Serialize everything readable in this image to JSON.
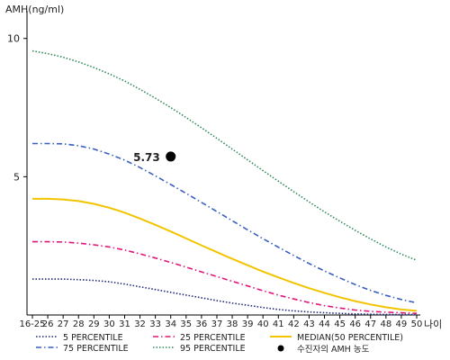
{
  "chart_data": {
    "type": "line",
    "title": "",
    "ylabel": "AMH(ng/ml)",
    "xlabel": "나이",
    "ylim": [
      0,
      11
    ],
    "y_ticks": [
      5,
      10
    ],
    "categories": [
      "16-25",
      "26",
      "27",
      "28",
      "29",
      "30",
      "31",
      "32",
      "33",
      "34",
      "35",
      "36",
      "37",
      "38",
      "39",
      "40",
      "41",
      "42",
      "43",
      "44",
      "45",
      "46",
      "47",
      "48",
      "49",
      "50"
    ],
    "series": [
      {
        "name": "5 PERCENTILE",
        "color": "#1f2a7a",
        "style": "dotted",
        "values": [
          1.3,
          1.3,
          1.3,
          1.28,
          1.25,
          1.2,
          1.12,
          1.02,
          0.92,
          0.82,
          0.72,
          0.62,
          0.52,
          0.43,
          0.35,
          0.27,
          0.2,
          0.15,
          0.11,
          0.08,
          0.06,
          0.04,
          0.03,
          0.02,
          0.02,
          0.02
        ]
      },
      {
        "name": "25 PERCENTILE",
        "color": "#e0157a",
        "style": "dashdot",
        "values": [
          2.65,
          2.65,
          2.64,
          2.6,
          2.54,
          2.46,
          2.35,
          2.21,
          2.06,
          1.9,
          1.73,
          1.56,
          1.39,
          1.22,
          1.05,
          0.88,
          0.72,
          0.58,
          0.45,
          0.34,
          0.25,
          0.18,
          0.13,
          0.1,
          0.08,
          0.06
        ]
      },
      {
        "name": "MEDIAN(50 PERCENTILE)",
        "color": "#f2c400",
        "style": "solid",
        "values": [
          4.2,
          4.2,
          4.18,
          4.12,
          4.02,
          3.88,
          3.7,
          3.49,
          3.26,
          3.02,
          2.77,
          2.52,
          2.27,
          2.03,
          1.8,
          1.57,
          1.36,
          1.16,
          0.97,
          0.8,
          0.64,
          0.5,
          0.38,
          0.28,
          0.2,
          0.15
        ]
      },
      {
        "name": "75 PERCENTILE",
        "color": "#3a5fc0",
        "style": "dashdot",
        "values": [
          6.2,
          6.2,
          6.19,
          6.12,
          6.0,
          5.82,
          5.6,
          5.33,
          5.03,
          4.72,
          4.4,
          4.07,
          3.74,
          3.41,
          3.08,
          2.76,
          2.45,
          2.15,
          1.86,
          1.59,
          1.34,
          1.1,
          0.89,
          0.71,
          0.56,
          0.44
        ]
      },
      {
        "name": "95 PERCENTILE",
        "color": "#2e8b57",
        "style": "dotted",
        "values": [
          9.55,
          9.45,
          9.32,
          9.15,
          8.95,
          8.72,
          8.46,
          8.16,
          7.84,
          7.5,
          7.14,
          6.77,
          6.39,
          6.0,
          5.61,
          5.22,
          4.84,
          4.46,
          4.09,
          3.73,
          3.39,
          3.06,
          2.75,
          2.46,
          2.2,
          1.98
        ]
      }
    ],
    "marker": {
      "label": "수진자의 AMH 농도",
      "category": "34",
      "value": 5.73,
      "value_label": "5.73",
      "color": "#000000"
    },
    "legend_position": "bottom"
  }
}
